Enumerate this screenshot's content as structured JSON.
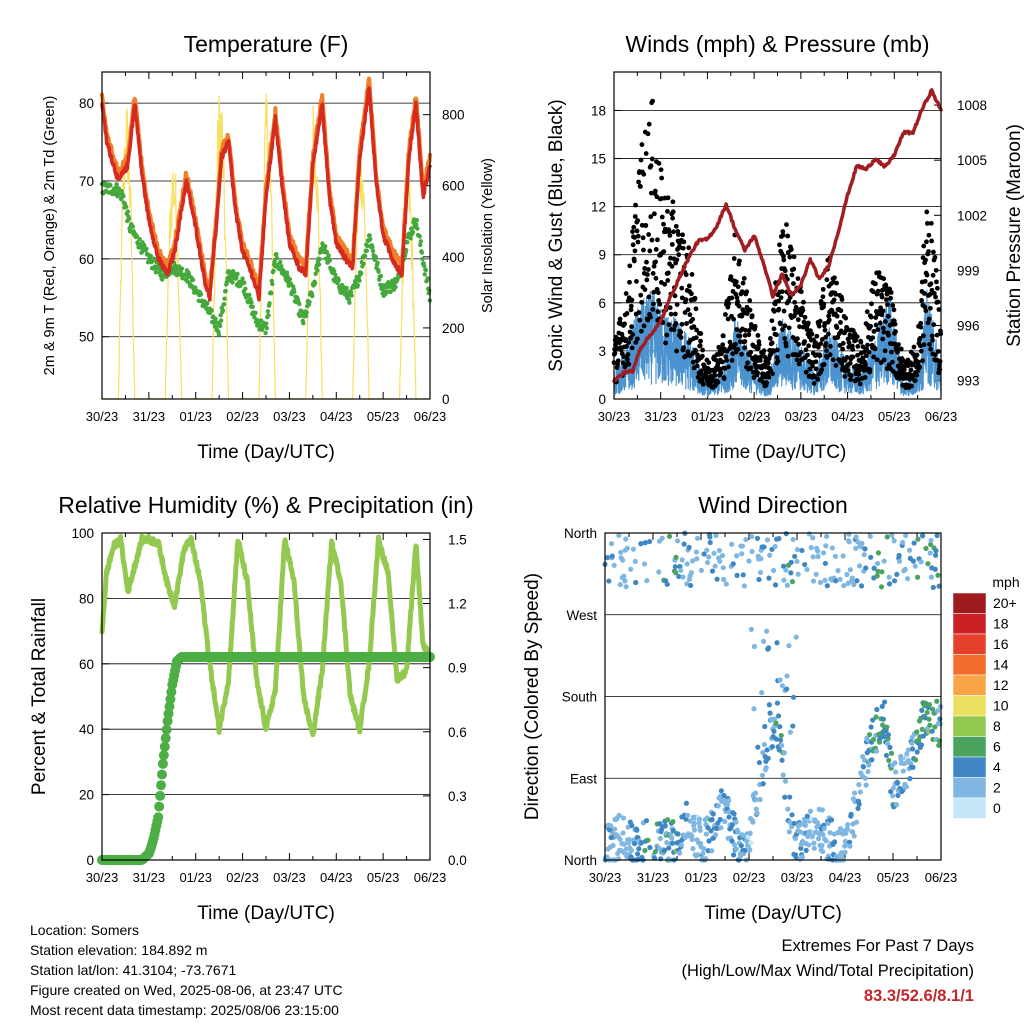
{
  "charts": {
    "temperature": {
      "title": "Temperature (F)",
      "xlabel": "Time (Day/UTC)",
      "ylabel_left": "2m & 9m T (Red, Orange) & 2m Td (Green)",
      "ylabel_right": "Solar Insolation (Yellow)"
    },
    "winds": {
      "title": "Winds (mph) & Pressure (mb)",
      "xlabel": "Time (Day/UTC)",
      "ylabel_left": "Sonic Wind & Gust (Blue, Black)",
      "ylabel_right": "Station Pressure (Maroon)"
    },
    "humidity": {
      "title": "Relative Humidity (%) & Precipitation (in)",
      "xlabel": "Time (Day/UTC)",
      "ylabel_left": "Percent & Total Rainfall"
    },
    "direction": {
      "title": "Wind Direction",
      "xlabel": "Time (Day/UTC)",
      "ylabel_left": "Direction (Colored By Speed)"
    }
  },
  "colors": {
    "temp2m": "#d42a20",
    "temp9m": "#f07f28",
    "dewpoint": "#45a83c",
    "solar": "#f8e060",
    "wind": "#4b93cf",
    "gust": "#000000",
    "pressure": "#a01e22",
    "rh": "#93c94f",
    "rain": "#4cae45"
  },
  "legend": {
    "unit": "mph",
    "labels": [
      "20+",
      "18",
      "16",
      "14",
      "12",
      "10",
      "8",
      "6",
      "4",
      "2",
      "0"
    ],
    "colors": [
      "#9e1a1e",
      "#cc2027",
      "#e4402c",
      "#f26d2c",
      "#f9a447",
      "#ece060",
      "#92c84f",
      "#4aa45e",
      "#3e87c4",
      "#7fb7e2",
      "#c4e7f8"
    ]
  },
  "info": {
    "location": "Location: Somers",
    "elevation": "Station elevation: 184.892 m",
    "latlon": "Station lat/lon: 41.3104; -73.7671",
    "created": "Figure created on Wed, 2025-08-06, at 23:47 UTC",
    "recent": "Most recent data timestamp: 2025/08/06 23:15:00"
  },
  "extremes": {
    "line1": "Extremes For Past 7 Days",
    "line2": "(High/Low/Max Wind/Total Precipitation)",
    "values": "83.3/52.6/8.1/1"
  },
  "chart_data": [
    {
      "type": "line",
      "title": "Temperature (F)",
      "xlabel": "Time (Day/UTC)",
      "ylabel": "2m & 9m T (Red, Orange) & 2m Td (Green)",
      "y2label": "Solar Insolation (Yellow)",
      "categories": [
        "30/23",
        "31/23",
        "01/23",
        "02/23",
        "03/23",
        "04/23",
        "05/23",
        "06/23"
      ],
      "ylim": [
        42,
        84
      ],
      "yticks": [
        50,
        60,
        70,
        80
      ],
      "y2lim": [
        0,
        920
      ],
      "y2ticks": [
        0,
        200,
        400,
        600,
        800
      ],
      "series": [
        {
          "name": "2m T",
          "color": "#d42a20",
          "x": [
            0,
            0.1,
            0.2,
            0.35,
            0.45,
            0.55,
            0.7,
            0.85,
            1.0,
            1.2,
            1.4,
            1.55,
            1.8,
            2.0,
            2.2,
            2.3,
            2.45,
            2.55,
            2.7,
            2.85,
            3.0,
            3.2,
            3.35,
            3.5,
            3.7,
            3.85,
            4.0,
            4.2,
            4.35,
            4.5,
            4.7,
            4.85,
            5.0,
            5.2,
            5.35,
            5.5,
            5.7,
            5.85,
            6.0,
            6.2,
            6.4,
            6.55,
            6.7,
            6.85,
            7.0
          ],
          "values": [
            80,
            75,
            73,
            70,
            71,
            72,
            80,
            71,
            65,
            60,
            58,
            61,
            70,
            64,
            57,
            55,
            65,
            73,
            75,
            66,
            61,
            58,
            55,
            68,
            78,
            69,
            62,
            59,
            58,
            72,
            80,
            68,
            62,
            60,
            59,
            73,
            82,
            70,
            63,
            60,
            58,
            73,
            80,
            68,
            72
          ]
        },
        {
          "name": "2m Td",
          "color": "#45a83c",
          "x": [
            0,
            0.3,
            0.45,
            0.6,
            0.8,
            1.0,
            1.3,
            1.5,
            1.8,
            2.0,
            2.3,
            2.5,
            2.7,
            3.0,
            3.3,
            3.5,
            3.7,
            4.0,
            4.3,
            4.5,
            4.7,
            5.0,
            5.3,
            5.5,
            5.7,
            6.0,
            6.3,
            6.5,
            6.7,
            7.0
          ],
          "values": [
            69,
            69,
            68,
            64,
            62,
            60,
            58,
            59,
            58,
            56,
            53,
            51,
            58,
            57,
            52,
            51,
            60,
            57,
            52,
            56,
            62,
            57,
            55,
            58,
            63,
            56,
            57,
            62,
            65,
            55
          ]
        },
        {
          "name": "Solar Insolation",
          "color": "#f8e060",
          "x": [
            0,
            0.1,
            0.25,
            0.5,
            0.75,
            1.0,
            1.5,
            2.0,
            2.5,
            3.0,
            3.5,
            4.0,
            4.5,
            5.0,
            5.5,
            6.0,
            6.5,
            7.0
          ],
          "values": [
            600,
            300,
            0,
            850,
            0,
            0,
            700,
            0,
            900,
            0,
            880,
            0,
            860,
            0,
            760,
            0,
            700,
            200
          ]
        }
      ]
    },
    {
      "type": "scatter",
      "title": "Winds (mph) & Pressure (mb)",
      "xlabel": "Time (Day/UTC)",
      "ylabel": "Sonic Wind & Gust (Blue, Black)",
      "y2label": "Station Pressure (Maroon)",
      "categories": [
        "30/23",
        "31/23",
        "01/23",
        "02/23",
        "03/23",
        "04/23",
        "05/23",
        "06/23"
      ],
      "ylim": [
        0,
        20.4
      ],
      "yticks": [
        0,
        3,
        6,
        9,
        12,
        15,
        18
      ],
      "y2lim": [
        992.0,
        1009.8
      ],
      "y2ticks": [
        993,
        996,
        999,
        1002,
        1005,
        1008
      ],
      "series": [
        {
          "name": "Station Pressure",
          "type": "line",
          "color": "#a01e22",
          "x": [
            0,
            0.25,
            0.4,
            0.55,
            0.75,
            1.0,
            1.2,
            1.4,
            1.6,
            1.8,
            2.0,
            2.2,
            2.4,
            2.6,
            2.8,
            3.0,
            3.2,
            3.4,
            3.6,
            3.8,
            4.0,
            4.2,
            4.4,
            4.6,
            4.8,
            5.0,
            5.2,
            5.4,
            5.6,
            5.8,
            6.0,
            6.2,
            6.4,
            6.6,
            6.8,
            7.0
          ],
          "values": [
            993.0,
            993.5,
            993.5,
            994.7,
            995.4,
            996.2,
            997.5,
            998.6,
            999.7,
            1000.6,
            1000.7,
            1001.4,
            1002.6,
            1001.2,
            1000.1,
            1000.9,
            999.4,
            997.6,
            998.8,
            997.6,
            998.2,
            999.6,
            998.5,
            999.3,
            1001.1,
            1003.1,
            1004.7,
            1004.5,
            1005.1,
            1004.6,
            1005.3,
            1006.5,
            1006.5,
            1007.8,
            1008.8,
            1007.7
          ]
        },
        {
          "name": "Gust envelope",
          "color": "#000000",
          "x": [
            0,
            0.3,
            0.5,
            0.8,
            1.0,
            1.3,
            1.6,
            1.8,
            2.0,
            2.3,
            2.6,
            3.0,
            3.3,
            3.6,
            4.0,
            4.3,
            4.6,
            5.0,
            5.3,
            5.6,
            5.9,
            6.2,
            6.5,
            6.7,
            6.85,
            7.0
          ],
          "values": [
            3,
            6,
            12,
            16,
            12,
            10,
            8,
            4,
            2,
            3,
            9,
            4,
            2,
            10,
            6,
            3,
            8,
            4,
            3,
            7,
            6,
            2,
            3,
            11,
            8,
            4
          ]
        },
        {
          "name": "Wind envelope",
          "color": "#4b93cf",
          "x": [
            0,
            0.3,
            0.5,
            0.8,
            1.0,
            1.3,
            1.6,
            1.8,
            2.0,
            2.3,
            2.6,
            3.0,
            3.3,
            3.6,
            4.0,
            4.3,
            4.6,
            5.0,
            5.3,
            5.6,
            5.9,
            6.2,
            6.5,
            6.7,
            6.85,
            7.0
          ],
          "values": [
            1.5,
            3,
            5,
            6,
            5,
            4.5,
            3.5,
            2,
            1,
            1.5,
            4.5,
            2,
            1,
            4.5,
            3,
            1.5,
            4,
            2,
            1.5,
            3.5,
            6,
            1,
            1.5,
            6,
            4,
            2
          ]
        }
      ]
    },
    {
      "type": "line",
      "title": "Relative Humidity (%) & Precipitation (in)",
      "xlabel": "Time (Day/UTC)",
      "ylabel": "Percent & Total Rainfall",
      "categories": [
        "30/23",
        "31/23",
        "01/23",
        "02/23",
        "03/23",
        "04/23",
        "05/23",
        "06/23"
      ],
      "ylim": [
        0,
        100
      ],
      "yticks": [
        0,
        20,
        40,
        60,
        80,
        100
      ],
      "y2lim": [
        0,
        1.53
      ],
      "y2ticks": [
        0.0,
        0.3,
        0.6,
        0.9,
        1.2,
        1.5
      ],
      "series": [
        {
          "name": "Relative Humidity",
          "color": "#93c94f",
          "x": [
            0,
            0.1,
            0.25,
            0.4,
            0.55,
            0.7,
            0.85,
            1.0,
            1.2,
            1.4,
            1.55,
            1.75,
            1.9,
            2.1,
            2.3,
            2.5,
            2.7,
            2.9,
            3.1,
            3.3,
            3.5,
            3.7,
            3.9,
            4.1,
            4.3,
            4.5,
            4.7,
            4.9,
            5.1,
            5.3,
            5.5,
            5.7,
            5.9,
            6.1,
            6.3,
            6.5,
            6.7,
            6.85,
            7.0
          ],
          "values": [
            70,
            88,
            96,
            98,
            82,
            90,
            98,
            98,
            97,
            84,
            78,
            95,
            98,
            85,
            60,
            40,
            55,
            98,
            85,
            55,
            40,
            52,
            98,
            85,
            50,
            38,
            58,
            97,
            85,
            50,
            40,
            60,
            98,
            88,
            55,
            58,
            97,
            66,
            62
          ]
        },
        {
          "name": "Total Rainfall",
          "color": "#4cae45",
          "x": [
            0,
            0.6,
            0.85,
            1.0,
            1.05,
            1.1,
            1.2,
            1.3,
            1.4,
            1.5,
            1.6,
            1.7,
            7.0
          ],
          "values": [
            0,
            0,
            0,
            0.03,
            0.06,
            0.1,
            0.2,
            0.45,
            0.65,
            0.82,
            0.93,
            0.95,
            0.95
          ]
        }
      ]
    },
    {
      "type": "scatter",
      "title": "Wind Direction",
      "xlabel": "Time (Day/UTC)",
      "ylabel": "Direction (Colored By Speed)",
      "categories": [
        "30/23",
        "31/23",
        "01/23",
        "02/23",
        "03/23",
        "04/23",
        "05/23",
        "06/23"
      ],
      "yticks": [
        "North",
        "East",
        "South",
        "West",
        "North"
      ],
      "ylim": [
        0,
        360
      ],
      "legend": "right",
      "series": [
        {
          "name": "Direction",
          "x": [
            0.1,
            0.4,
            0.6,
            0.9,
            1.2,
            1.5,
            1.7,
            2.0,
            2.2,
            2.5,
            2.8,
            3.0,
            3.3,
            3.6,
            3.9,
            4.1,
            4.4,
            4.7,
            5.0,
            5.2,
            5.5,
            5.8,
            6.0,
            6.3,
            6.5,
            6.7,
            6.85
          ],
          "values": [
            15,
            30,
            10,
            20,
            25,
            15,
            40,
            20,
            30,
            60,
            10,
            20,
            110,
            150,
            30,
            20,
            40,
            20,
            10,
            50,
            120,
            160,
            80,
            100,
            140,
            160,
            150
          ],
          "speed": [
            3,
            2,
            4,
            5,
            4,
            6,
            3,
            2,
            4,
            3,
            4,
            2,
            3,
            4,
            4,
            3,
            2,
            3,
            2,
            3,
            4,
            6,
            4,
            2,
            5,
            6,
            5
          ]
        }
      ]
    }
  ]
}
